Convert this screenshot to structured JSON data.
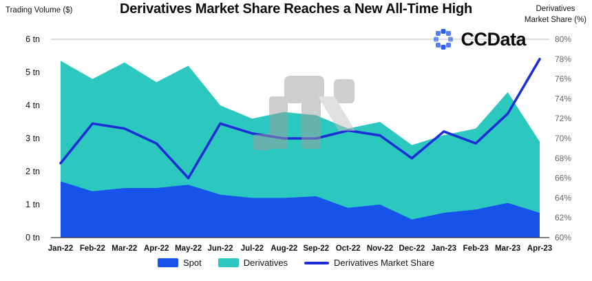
{
  "logo": {
    "text": "CCData",
    "color": "#2b5cf0"
  },
  "legend": {
    "spot": "Spot",
    "derivatives": "Derivatives",
    "share": "Derivatives Market Share"
  },
  "chart_data": {
    "type": "area",
    "stacked": true,
    "title": "Derivatives Market Share Reaches a New All-Time High",
    "left_axis_title": "Trading Volume ($)",
    "right_axis_title_line1": "Derivatives",
    "right_axis_title_line2": "Market Share (%)",
    "legend_position": "bottom",
    "grid": "top-and-bottom-rule-only",
    "categories": [
      "Jan-22",
      "Feb-22",
      "Mar-22",
      "Apr-22",
      "May-22",
      "Jun-22",
      "Jul-22",
      "Aug-22",
      "Sep-22",
      "Oct-22",
      "Nov-22",
      "Dec-22",
      "Jan-23",
      "Feb-23",
      "Mar-23",
      "Apr-23"
    ],
    "series": [
      {
        "name": "Spot",
        "type": "area",
        "axis": "left",
        "unit": "tn",
        "values": [
          1.7,
          1.4,
          1.5,
          1.5,
          1.6,
          1.3,
          1.2,
          1.2,
          1.25,
          0.9,
          1.0,
          0.55,
          0.75,
          0.85,
          1.05,
          0.75
        ]
      },
      {
        "name": "Derivatives",
        "type": "area",
        "axis": "left",
        "unit": "tn",
        "values": [
          3.65,
          3.4,
          3.8,
          3.2,
          3.6,
          2.7,
          2.4,
          2.6,
          2.45,
          2.4,
          2.5,
          2.25,
          2.35,
          2.45,
          3.35,
          2.15
        ]
      },
      {
        "name": "Derivatives Market Share",
        "type": "line",
        "axis": "right",
        "unit": "%",
        "values": [
          67.5,
          71.5,
          71.0,
          69.5,
          66.0,
          71.5,
          70.5,
          70.0,
          70.0,
          70.8,
          70.3,
          68.0,
          70.7,
          69.5,
          72.5,
          78.0
        ]
      }
    ],
    "left_ticks": [
      "0 tn",
      "1 tn",
      "2 tn",
      "3 tn",
      "4 tn",
      "5 tn",
      "6 tn"
    ],
    "right_ticks": [
      "60%",
      "62%",
      "64%",
      "66%",
      "68%",
      "70%",
      "72%",
      "74%",
      "76%",
      "78%",
      "80%"
    ],
    "left_max": 6,
    "right_min": 60,
    "right_max": 80,
    "colors": {
      "spot": "#1553eb",
      "derivatives": "#2cc8bf",
      "line": "#1d2fd4"
    }
  }
}
